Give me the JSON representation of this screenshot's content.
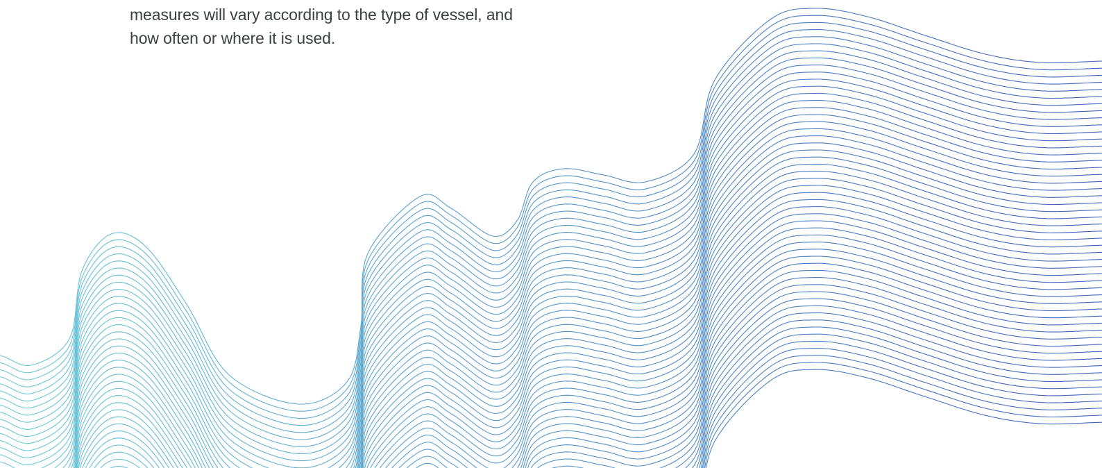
{
  "text": {
    "line_1": "measures will vary according to the type of vessel, and",
    "line_2": "how often or where it is used."
  },
  "decoration": {
    "name": "wave-lines",
    "color_left": "#6cc9d8",
    "color_right": "#3f62b8"
  }
}
